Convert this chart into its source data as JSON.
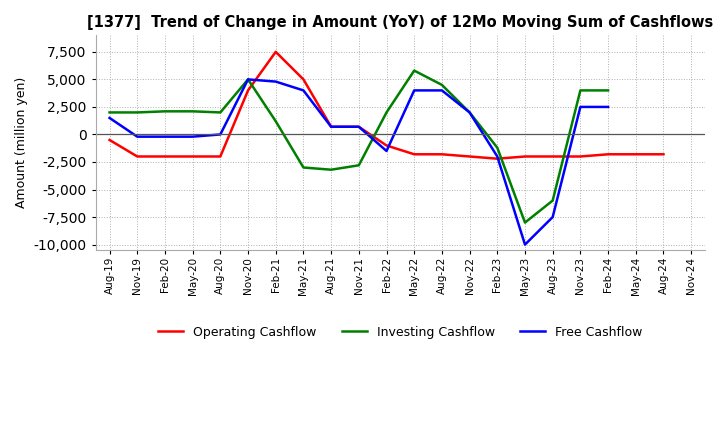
{
  "title": "[1377]  Trend of Change in Amount (YoY) of 12Mo Moving Sum of Cashflows",
  "ylabel": "Amount (million yen)",
  "ylim": [
    -10500,
    9000
  ],
  "yticks": [
    -10000,
    -7500,
    -5000,
    -2500,
    0,
    2500,
    5000,
    7500
  ],
  "x_labels": [
    "Aug-19",
    "Nov-19",
    "Feb-20",
    "May-20",
    "Aug-20",
    "Nov-20",
    "Feb-21",
    "May-21",
    "Aug-21",
    "Nov-21",
    "Feb-22",
    "May-22",
    "Aug-22",
    "Nov-22",
    "Feb-23",
    "May-23",
    "Aug-23",
    "Nov-23",
    "Feb-24",
    "May-24",
    "Aug-24",
    "Nov-24"
  ],
  "operating": [
    -500,
    -2000,
    -2000,
    -2000,
    -2000,
    4000,
    7500,
    5000,
    700,
    700,
    -1000,
    -1800,
    -1800,
    -2000,
    -2200,
    -2000,
    -2000,
    -2000,
    -1800,
    -1800,
    -1800,
    null
  ],
  "investing": [
    2000,
    2000,
    2100,
    2100,
    2000,
    5000,
    1200,
    -3000,
    -3200,
    -2800,
    2000,
    5800,
    4500,
    2000,
    -1200,
    -8000,
    -6000,
    4000,
    4000,
    null,
    null,
    null
  ],
  "free": [
    1500,
    -200,
    -200,
    -200,
    0,
    5000,
    4800,
    4000,
    700,
    700,
    -1500,
    4000,
    4000,
    2000,
    -2000,
    -10000,
    -7500,
    2500,
    2500,
    null,
    null,
    null
  ],
  "operating_color": "#ff0000",
  "investing_color": "#008000",
  "free_color": "#0000ff",
  "background_color": "#ffffff",
  "grid_color": "#b0b0b0"
}
